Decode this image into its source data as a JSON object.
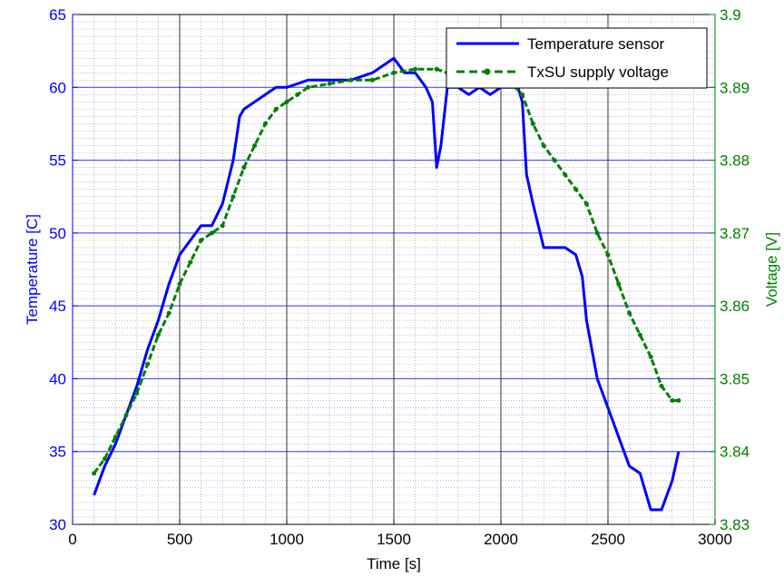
{
  "chart_data": {
    "type": "line",
    "title": "",
    "xlabel": "Time [s]",
    "ylabel_left": "Temperature [C]",
    "ylabel_right": "Voltage [V]",
    "xlim": [
      0,
      3000
    ],
    "ylim_left": [
      30,
      65
    ],
    "ylim_right": [
      3.83,
      3.9
    ],
    "x_ticks": [
      0,
      500,
      1000,
      1500,
      2000,
      2500,
      3000
    ],
    "x_tick_labels": [
      "0",
      "500",
      "1000",
      "1500",
      "2000",
      "2500",
      "3000"
    ],
    "y_left_ticks": [
      30,
      35,
      40,
      45,
      50,
      55,
      60,
      65
    ],
    "y_left_tick_labels": [
      "30",
      "35",
      "40",
      "45",
      "50",
      "55",
      "60",
      "65"
    ],
    "y_right_ticks": [
      3.83,
      3.84,
      3.85,
      3.86,
      3.87,
      3.88,
      3.89,
      3.9
    ],
    "y_right_tick_labels": [
      "3.83",
      "3.84",
      "3.85",
      "3.86",
      "3.87",
      "3.88",
      "3.89",
      "3.9"
    ],
    "grid": true,
    "minor_grid": true,
    "legend_position": "top-right",
    "colors": {
      "left_axis": "#0000ff",
      "right_axis": "#008000",
      "grid": "#000080"
    },
    "series": [
      {
        "name": "Temperature sensor",
        "axis": "left",
        "color": "#0000ff",
        "style": "solid",
        "x": [
          100,
          150,
          200,
          250,
          300,
          350,
          400,
          450,
          500,
          550,
          600,
          650,
          700,
          750,
          780,
          800,
          850,
          900,
          950,
          1000,
          1100,
          1200,
          1300,
          1400,
          1500,
          1550,
          1600,
          1650,
          1680,
          1700,
          1720,
          1750,
          1800,
          1850,
          1900,
          1950,
          2000,
          2050,
          2080,
          2100,
          2120,
          2150,
          2200,
          2250,
          2300,
          2350,
          2380,
          2400,
          2450,
          2500,
          2550,
          2600,
          2650,
          2700,
          2750,
          2800,
          2830
        ],
        "y": [
          32,
          34,
          35.5,
          37.5,
          39.5,
          42,
          44,
          46.5,
          48.5,
          49.5,
          50.5,
          50.5,
          52,
          55,
          58,
          58.5,
          59,
          59.5,
          60,
          60,
          60.5,
          60.5,
          60.5,
          61,
          62,
          61,
          61,
          60,
          59,
          54.5,
          56,
          60,
          60,
          59.5,
          60,
          59.5,
          60,
          60,
          60,
          59,
          54,
          52,
          49,
          49,
          49,
          48.5,
          47,
          44,
          40,
          38,
          36,
          34,
          33.5,
          31,
          31,
          33,
          35
        ]
      },
      {
        "name": "TxSU supply voltage",
        "axis": "right",
        "color": "#008000",
        "style": "dashed-marker",
        "x": [
          100,
          150,
          200,
          250,
          300,
          350,
          400,
          450,
          500,
          550,
          600,
          650,
          700,
          750,
          800,
          850,
          900,
          950,
          1000,
          1050,
          1100,
          1200,
          1300,
          1400,
          1500,
          1600,
          1700,
          1750,
          1800,
          1850,
          1900,
          1950,
          2000,
          2050,
          2100,
          2150,
          2200,
          2250,
          2300,
          2350,
          2400,
          2450,
          2500,
          2550,
          2600,
          2650,
          2700,
          2750,
          2800,
          2830
        ],
        "y": [
          3.837,
          3.839,
          3.842,
          3.845,
          3.848,
          3.852,
          3.856,
          3.859,
          3.863,
          3.866,
          3.869,
          3.87,
          3.871,
          3.875,
          3.879,
          3.882,
          3.885,
          3.887,
          3.888,
          3.889,
          3.89,
          3.8905,
          3.891,
          3.891,
          3.892,
          3.8925,
          3.8925,
          3.892,
          3.8915,
          3.8915,
          3.891,
          3.8905,
          3.8905,
          3.8905,
          3.889,
          3.885,
          3.882,
          3.88,
          3.878,
          3.876,
          3.874,
          3.87,
          3.867,
          3.863,
          3.859,
          3.856,
          3.853,
          3.849,
          3.847,
          3.847
        ]
      }
    ]
  }
}
